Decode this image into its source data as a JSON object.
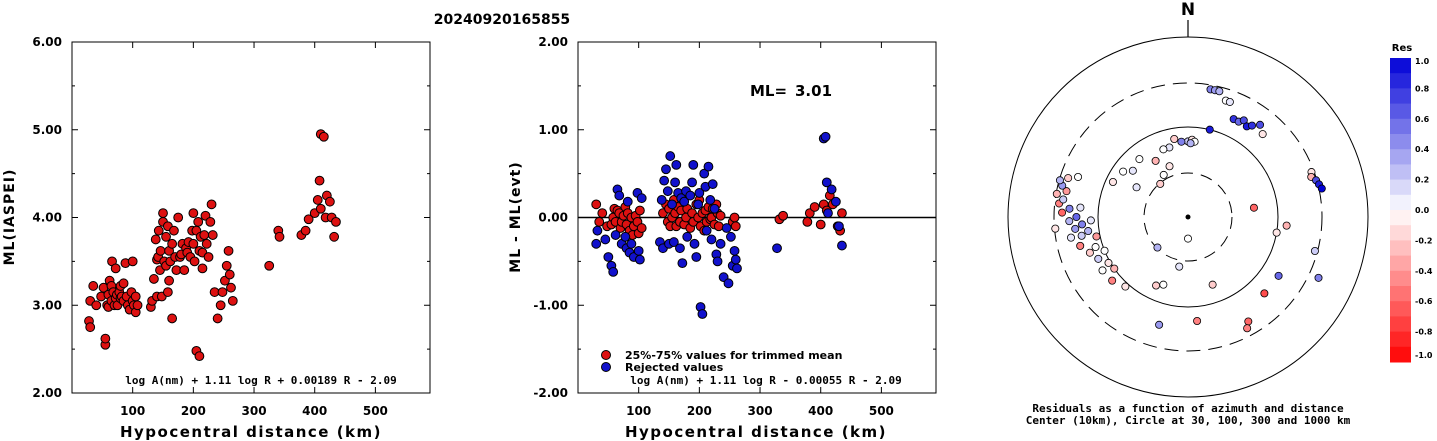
{
  "title": "20240920165855",
  "chart_data": [
    {
      "type": "scatter",
      "xlabel": "Hypocentral distance (km)",
      "ylabel": "ML(IASPEI)",
      "xlim": [
        0,
        590
      ],
      "ylim": [
        2.0,
        6.0
      ],
      "xticks": [
        "100",
        "200",
        "300",
        "400",
        "500"
      ],
      "yticks": [
        "2.00",
        "3.00",
        "4.00",
        "5.00",
        "6.00"
      ],
      "formula": "log A(nm) + 1.11 log R + 0.00189 R - 2.09",
      "series": [
        {
          "color": "#dd1111",
          "x": [
            28,
            30,
            30,
            35,
            40,
            48,
            52,
            55,
            55,
            58,
            60,
            60,
            62,
            65,
            65,
            66,
            68,
            70,
            72,
            72,
            74,
            75,
            78,
            80,
            80,
            82,
            85,
            85,
            88,
            90,
            92,
            95,
            98,
            100,
            100,
            102,
            105,
            105,
            108,
            130,
            132,
            135,
            138,
            140,
            140,
            142,
            143,
            145,
            146,
            148,
            150,
            150,
            152,
            155,
            155,
            158,
            158,
            160,
            160,
            162,
            165,
            165,
            168,
            170,
            172,
            175,
            178,
            180,
            182,
            185,
            188,
            190,
            192,
            195,
            198,
            200,
            200,
            202,
            205,
            205,
            208,
            210,
            210,
            212,
            215,
            215,
            218,
            220,
            222,
            225,
            228,
            230,
            232,
            235,
            240,
            245,
            248,
            252,
            255,
            258,
            260,
            262,
            265,
            325,
            340,
            342,
            378,
            385,
            390,
            400,
            405,
            408,
            410,
            410,
            415,
            418,
            420,
            425,
            428,
            432,
            435
          ],
          "y": [
            2.82,
            3.05,
            2.75,
            3.22,
            3.0,
            3.1,
            3.2,
            2.55,
            2.62,
            3.0,
            3.12,
            2.98,
            3.28,
            3.05,
            3.22,
            3.5,
            3.15,
            3.0,
            3.42,
            3.08,
            3.12,
            3.0,
            3.15,
            3.22,
            3.08,
            3.1,
            3.25,
            3.05,
            3.48,
            3.1,
            3.0,
            2.95,
            3.15,
            3.05,
            3.5,
            3.0,
            3.1,
            2.92,
            3.0,
            2.98,
            3.05,
            3.3,
            3.75,
            3.1,
            3.52,
            3.55,
            3.85,
            3.4,
            3.62,
            3.1,
            3.95,
            4.05,
            3.5,
            3.45,
            3.78,
            3.15,
            3.9,
            3.62,
            3.28,
            3.5,
            3.7,
            2.85,
            3.85,
            3.55,
            3.4,
            4.0,
            3.55,
            3.58,
            3.7,
            3.4,
            3.65,
            3.6,
            3.72,
            3.55,
            3.85,
            3.7,
            4.05,
            3.5,
            3.85,
            2.48,
            3.95,
            3.62,
            2.42,
            3.78,
            3.6,
            3.42,
            3.8,
            4.02,
            3.7,
            3.55,
            3.95,
            4.15,
            3.8,
            3.15,
            2.85,
            3.0,
            3.15,
            3.28,
            3.45,
            3.62,
            3.35,
            3.2,
            3.05,
            3.45,
            3.85,
            3.78,
            3.8,
            3.85,
            3.98,
            4.05,
            4.2,
            4.42,
            4.1,
            4.95,
            4.92,
            4.0,
            4.25,
            4.18,
            4.0,
            3.78,
            3.95
          ]
        }
      ]
    },
    {
      "type": "scatter",
      "xlabel": "Hypocentral distance (km)",
      "ylabel": "ML - ML(evt)",
      "xlim": [
        0,
        590
      ],
      "ylim": [
        -2.0,
        2.0
      ],
      "xticks": [
        "100",
        "200",
        "300",
        "400",
        "500"
      ],
      "yticks": [
        "-2.00",
        "-1.00",
        "0.00",
        "1.00",
        "2.00"
      ],
      "ml_label": "ML=",
      "ml_value": "3.01",
      "formula": "log A(nm) + 1.11 log R - 0.00055 R - 2.09",
      "series": [
        {
          "name": "25%-75% values for trimmed mean",
          "color": "#dd1111",
          "x": [
            30,
            35,
            40,
            48,
            55,
            58,
            60,
            62,
            65,
            68,
            70,
            72,
            75,
            78,
            80,
            82,
            85,
            88,
            90,
            92,
            95,
            98,
            100,
            102,
            105,
            140,
            145,
            148,
            150,
            152,
            155,
            158,
            160,
            162,
            165,
            168,
            170,
            175,
            178,
            180,
            185,
            188,
            190,
            195,
            198,
            200,
            202,
            205,
            208,
            210,
            212,
            215,
            218,
            220,
            222,
            225,
            228,
            230,
            232,
            235,
            255,
            258,
            260,
            332,
            338,
            378,
            382,
            390,
            400,
            405,
            410,
            415,
            420,
            428,
            432,
            435
          ],
          "y": [
            0.15,
            -0.05,
            0.05,
            -0.1,
            -0.08,
            0.0,
            0.1,
            -0.05,
            0.08,
            0.05,
            -0.12,
            -0.05,
            0.02,
            0.12,
            -0.08,
            0.05,
            -0.15,
            0.0,
            -0.2,
            -0.1,
            0.02,
            -0.05,
            -0.18,
            0.08,
            -0.12,
            0.05,
            0.15,
            -0.05,
            0.1,
            -0.1,
            0.0,
            0.2,
            0.05,
            -0.1,
            0.12,
            -0.05,
            0.08,
            -0.08,
            0.0,
            0.1,
            -0.12,
            0.05,
            -0.05,
            0.15,
            0.0,
            0.2,
            -0.1,
            0.05,
            -0.15,
            0.08,
            -0.05,
            0.12,
            -0.02,
            0.0,
            0.1,
            -0.08,
            0.15,
            0.05,
            -0.1,
            0.02,
            -0.05,
            0.0,
            -0.1,
            -0.02,
            0.02,
            -0.05,
            0.05,
            0.12,
            -0.08,
            0.15,
            0.08,
            0.25,
            0.15,
            -0.1,
            -0.15,
            0.05
          ]
        },
        {
          "name": "Rejected values",
          "color": "#1111cc",
          "x": [
            30,
            32,
            45,
            50,
            55,
            58,
            62,
            65,
            68,
            72,
            78,
            80,
            82,
            85,
            88,
            92,
            98,
            100,
            102,
            105,
            135,
            138,
            140,
            142,
            145,
            148,
            150,
            152,
            155,
            158,
            160,
            162,
            165,
            168,
            170,
            172,
            175,
            178,
            180,
            185,
            188,
            190,
            192,
            195,
            198,
            200,
            202,
            205,
            208,
            210,
            212,
            215,
            218,
            220,
            222,
            225,
            228,
            230,
            235,
            240,
            245,
            248,
            252,
            255,
            258,
            260,
            262,
            328,
            405,
            408,
            410,
            412,
            418,
            425,
            430,
            435
          ],
          "y": [
            -0.3,
            -0.15,
            -0.25,
            -0.45,
            -0.55,
            -0.62,
            -0.2,
            0.32,
            0.25,
            -0.3,
            -0.22,
            -0.35,
            0.18,
            -0.4,
            -0.3,
            -0.45,
            0.28,
            -0.38,
            -0.48,
            0.22,
            -0.28,
            0.2,
            -0.35,
            0.42,
            0.55,
            0.3,
            -0.3,
            0.7,
            0.15,
            -0.28,
            0.4,
            0.6,
            0.28,
            -0.35,
            0.22,
            -0.52,
            0.18,
            0.3,
            -0.22,
            0.25,
            0.4,
            0.6,
            -0.3,
            -0.45,
            0.15,
            0.28,
            -1.02,
            -1.1,
            0.5,
            0.35,
            -0.15,
            0.58,
            0.2,
            -0.25,
            0.38,
            0.1,
            -0.42,
            -0.5,
            -0.3,
            -0.68,
            -0.12,
            -0.75,
            -0.22,
            -0.55,
            -0.38,
            -0.48,
            -0.58,
            -0.35,
            0.9,
            0.92,
            0.4,
            0.05,
            0.32,
            0.18,
            -0.1,
            -0.32
          ]
        }
      ]
    },
    {
      "type": "scatter",
      "subtype": "polar",
      "north_label": "N",
      "caption_line1": "Residuals as a function of azimuth and distance",
      "caption_line2": "Center (10km), Circle at 30, 100, 300 and 1000 km",
      "colorbar_title": "Res",
      "colorbar_ticks": [
        "1.0",
        "0.8",
        "0.6",
        "0.4",
        "0.2",
        "0.0",
        "-0.2",
        "-0.4",
        "-0.6",
        "-0.8",
        "-1.0"
      ],
      "points": [
        {
          "az": 10,
          "r": 0.72,
          "res": 0.5
        },
        {
          "az": 12,
          "r": 0.72,
          "res": 0.4
        },
        {
          "az": 14,
          "r": 0.72,
          "res": 0.3
        },
        {
          "az": 18,
          "r": 0.68,
          "res": 0.0
        },
        {
          "az": 20,
          "r": 0.68,
          "res": 0.1
        },
        {
          "az": 25,
          "r": 0.6,
          "res": 0.8
        },
        {
          "az": 28,
          "r": 0.6,
          "res": 0.6
        },
        {
          "az": 30,
          "r": 0.62,
          "res": 0.7
        },
        {
          "az": 33,
          "r": 0.6,
          "res": 0.9
        },
        {
          "az": 35,
          "r": 0.62,
          "res": 0.8
        },
        {
          "az": 38,
          "r": 0.65,
          "res": 0.7
        },
        {
          "az": 42,
          "r": 0.62,
          "res": -0.1
        },
        {
          "az": 14,
          "r": 0.5,
          "res": 0.9
        },
        {
          "az": 0,
          "r": 0.42,
          "res": 0.2
        },
        {
          "az": 3,
          "r": 0.43,
          "res": -0.1
        },
        {
          "az": 5,
          "r": 0.42,
          "res": 0.0
        },
        {
          "az": 2,
          "r": 0.41,
          "res": 0.3
        },
        {
          "az": 355,
          "r": 0.42,
          "res": 0.5
        },
        {
          "az": 350,
          "r": 0.44,
          "res": -0.2
        },
        {
          "az": 345,
          "r": 0.4,
          "res": 0.1
        },
        {
          "az": 340,
          "r": 0.4,
          "res": 0.0
        },
        {
          "az": 330,
          "r": 0.36,
          "res": -0.3
        },
        {
          "az": 320,
          "r": 0.42,
          "res": 0.0
        },
        {
          "az": 310,
          "r": 0.4,
          "res": 0.1
        },
        {
          "az": 305,
          "r": 0.44,
          "res": 0.0
        },
        {
          "az": 295,
          "r": 0.46,
          "res": -0.1
        },
        {
          "az": 340,
          "r": 0.3,
          "res": -0.1
        },
        {
          "az": 330,
          "r": 0.27,
          "res": 0.0
        },
        {
          "az": 320,
          "r": 0.24,
          "res": -0.2
        },
        {
          "az": 300,
          "r": 0.33,
          "res": 0.1
        },
        {
          "az": 70,
          "r": 0.73,
          "res": -0.1
        },
        {
          "az": 72,
          "r": 0.72,
          "res": -0.3
        },
        {
          "az": 74,
          "r": 0.74,
          "res": 0.7
        },
        {
          "az": 76,
          "r": 0.75,
          "res": 0.9
        },
        {
          "az": 78,
          "r": 0.76,
          "res": 1.0
        },
        {
          "az": 95,
          "r": 0.55,
          "res": -0.3
        },
        {
          "az": 82,
          "r": 0.37,
          "res": -0.6
        },
        {
          "az": 105,
          "r": 0.73,
          "res": 0.2
        },
        {
          "az": 115,
          "r": 0.8,
          "res": 0.5
        },
        {
          "az": 123,
          "r": 0.6,
          "res": 0.6
        },
        {
          "az": 135,
          "r": 0.6,
          "res": -0.7
        },
        {
          "az": 150,
          "r": 0.67,
          "res": -0.6
        },
        {
          "az": 152,
          "r": 0.7,
          "res": -0.5
        },
        {
          "az": 160,
          "r": 0.4,
          "res": -0.2
        },
        {
          "az": 175,
          "r": 0.58,
          "res": -0.5
        },
        {
          "az": 195,
          "r": 0.62,
          "res": 0.4
        },
        {
          "az": 200,
          "r": 0.4,
          "res": 0.0
        },
        {
          "az": 205,
          "r": 0.42,
          "res": -0.2
        },
        {
          "az": 190,
          "r": 0.28,
          "res": 0.1
        },
        {
          "az": 225,
          "r": 0.24,
          "res": 0.3
        },
        {
          "az": 222,
          "r": 0.52,
          "res": -0.1
        },
        {
          "az": 230,
          "r": 0.55,
          "res": -0.5
        },
        {
          "az": 235,
          "r": 0.5,
          "res": -0.3
        },
        {
          "az": 238,
          "r": 0.56,
          "res": 0.0
        },
        {
          "az": 240,
          "r": 0.51,
          "res": -0.1
        },
        {
          "az": 245,
          "r": 0.55,
          "res": 0.2
        },
        {
          "az": 248,
          "r": 0.5,
          "res": 0.0
        },
        {
          "az": 250,
          "r": 0.58,
          "res": -0.2
        },
        {
          "az": 252,
          "r": 0.54,
          "res": 0.0
        },
        {
          "az": 255,
          "r": 0.62,
          "res": -0.5
        },
        {
          "az": 258,
          "r": 0.52,
          "res": -0.4
        },
        {
          "az": 260,
          "r": 0.6,
          "res": 0.2
        },
        {
          "az": 262,
          "r": 0.56,
          "res": 0.3
        },
        {
          "az": 264,
          "r": 0.63,
          "res": 0.4
        },
        {
          "az": 266,
          "r": 0.59,
          "res": 0.5
        },
        {
          "az": 268,
          "r": 0.66,
          "res": 0.3
        },
        {
          "az": 270,
          "r": 0.62,
          "res": 0.6
        },
        {
          "az": 272,
          "r": 0.7,
          "res": -0.6
        },
        {
          "az": 274,
          "r": 0.66,
          "res": 0.5
        },
        {
          "az": 276,
          "r": 0.72,
          "res": -0.5
        },
        {
          "az": 278,
          "r": 0.7,
          "res": 0.2
        },
        {
          "az": 280,
          "r": 0.74,
          "res": -0.3
        },
        {
          "az": 282,
          "r": 0.69,
          "res": -0.4
        },
        {
          "az": 284,
          "r": 0.72,
          "res": 0.4
        },
        {
          "az": 286,
          "r": 0.74,
          "res": 0.3
        },
        {
          "az": 288,
          "r": 0.7,
          "res": -0.2
        },
        {
          "az": 260,
          "r": 0.66,
          "res": 0.1
        },
        {
          "az": 265,
          "r": 0.74,
          "res": -0.1
        },
        {
          "az": 275,
          "r": 0.6,
          "res": 0.1
        },
        {
          "az": 290,
          "r": 0.65,
          "res": 0.0
        },
        {
          "az": 268,
          "r": 0.54,
          "res": 0.1
        },
        {
          "az": 100,
          "r": 0.5,
          "res": -0.1
        },
        {
          "az": 180,
          "r": 0.12,
          "res": 0.0
        }
      ]
    }
  ]
}
